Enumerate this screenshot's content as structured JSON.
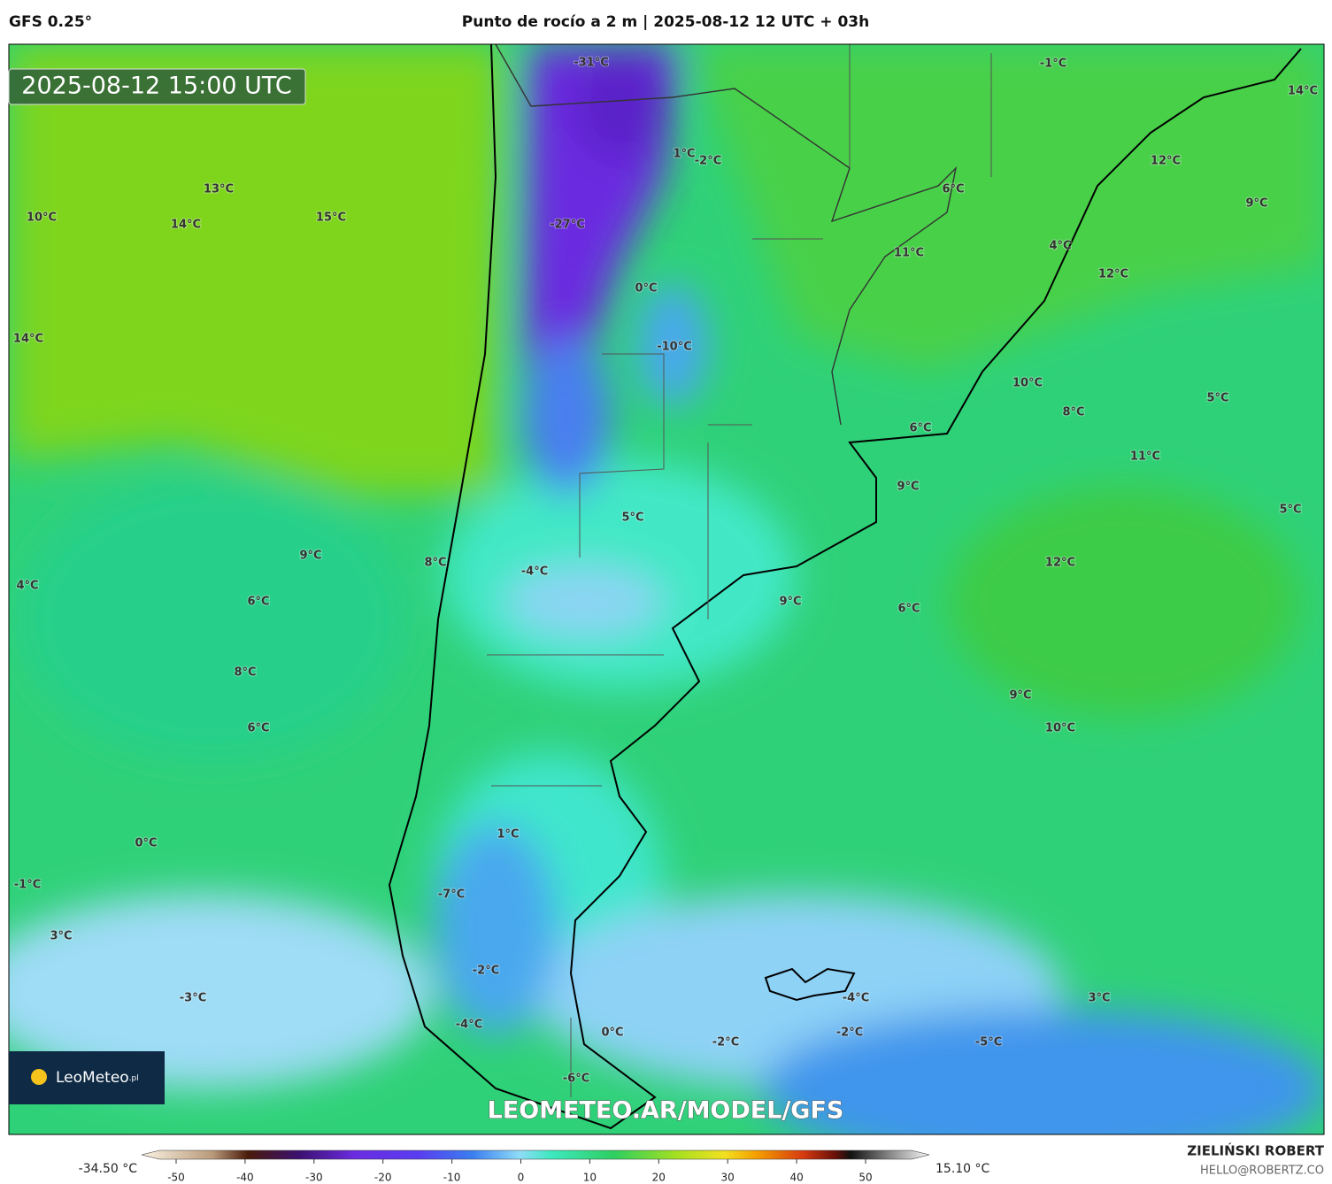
{
  "header": {
    "model": "GFS 0.25°",
    "title": "Punto de rocío a 2 m | 2025-08-12 12 UTC + 03h"
  },
  "timestamp": "2025-08-12 15:00 UTC",
  "logo": {
    "name": "LeoMeteo",
    "suffix": ".pl"
  },
  "watermark": "LEOMETEO.AR/MODEL/GFS",
  "credit": {
    "author": "ZIELIŃSKI ROBERT",
    "contact": "HELLO@ROBERTZ.CO"
  },
  "colorbar": {
    "min_label": "-34.50 °C",
    "max_label": "15.10 °C",
    "ticks": [
      -50,
      -40,
      -30,
      -20,
      -10,
      0,
      10,
      20,
      30,
      40,
      50
    ]
  },
  "map_labels": [
    "-31°C",
    "-1°C",
    "14°C",
    "1°C",
    "-2°C",
    "12°C",
    "13°C",
    "6°C",
    "9°C",
    "10°C",
    "14°C",
    "15°C",
    "-27°C",
    "4°C",
    "11°C",
    "12°C",
    "0°C",
    "14°C",
    "-10°C",
    "10°C",
    "8°C",
    "5°C",
    "6°C",
    "11°C",
    "9°C",
    "5°C",
    "5°C",
    "9°C",
    "8°C",
    "-4°C",
    "12°C",
    "4°C",
    "6°C",
    "9°C",
    "6°C",
    "8°C",
    "9°C",
    "6°C",
    "10°C",
    "1°C",
    "0°C",
    "-1°C",
    "-7°C",
    "3°C",
    "-2°C",
    "-3°C",
    "-4°C",
    "3°C",
    "-4°C",
    "0°C",
    "-2°C",
    "-2°C",
    "-5°C",
    "-6°C"
  ]
}
